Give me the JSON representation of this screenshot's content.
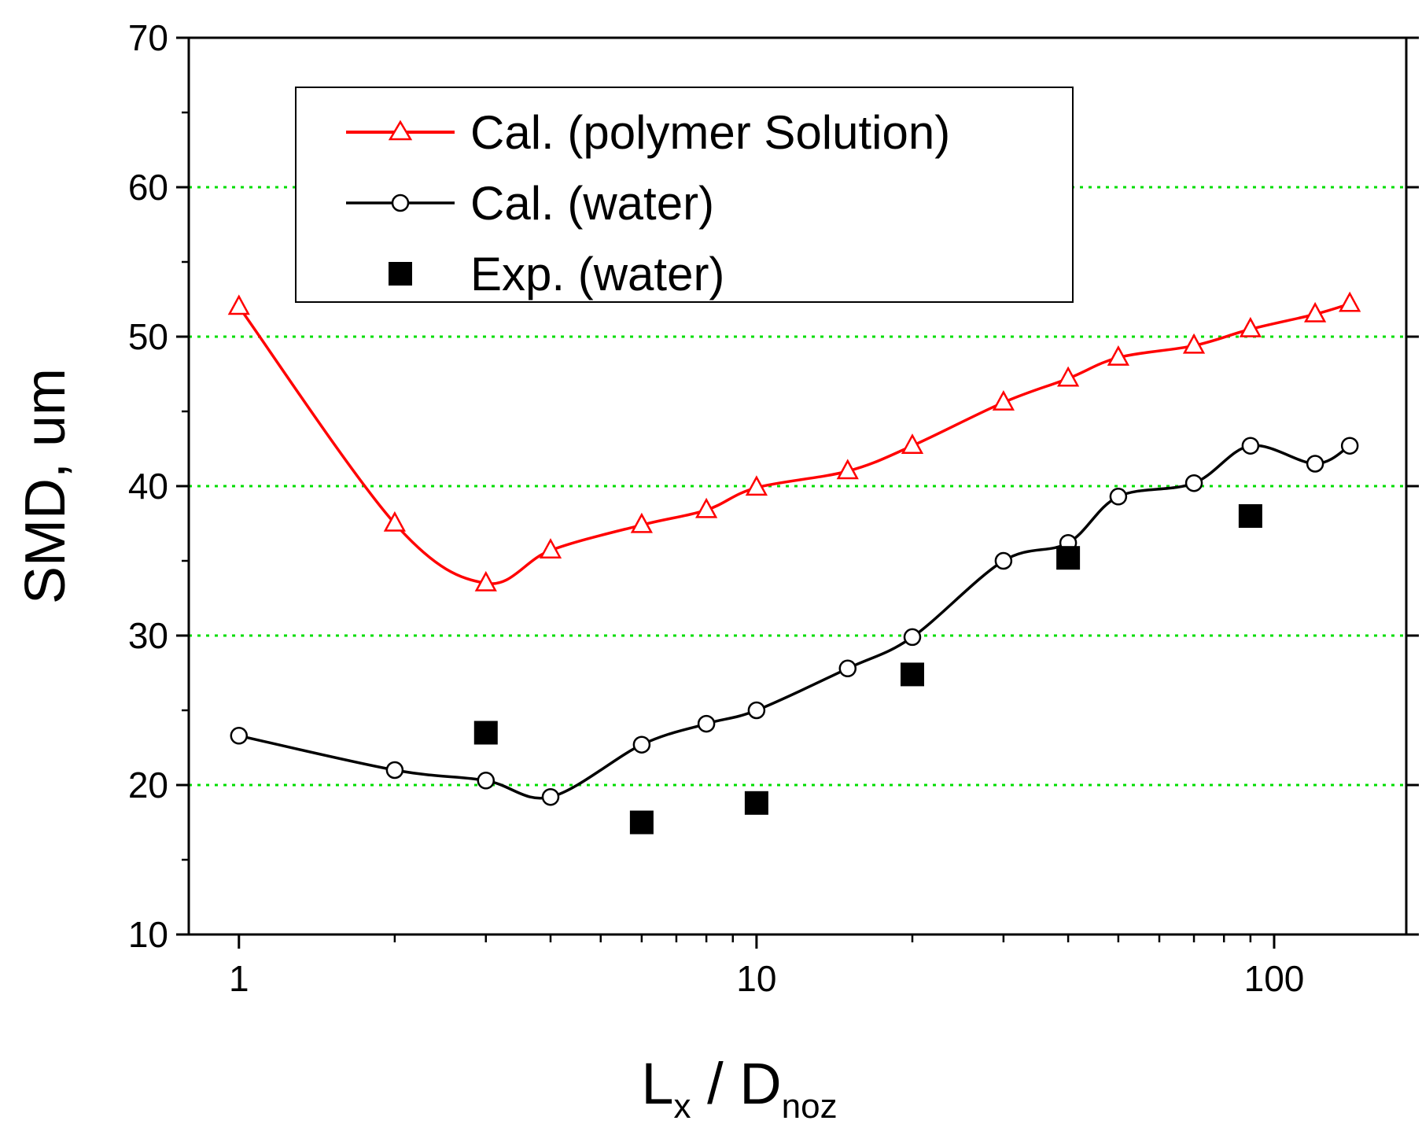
{
  "chart_data": {
    "type": "line",
    "xscale": "log",
    "xlim": [
      0.8,
      180
    ],
    "ylim": [
      10,
      70
    ],
    "xticks_major": [
      1,
      10,
      100
    ],
    "xtick_labels": [
      "1",
      "10",
      "100"
    ],
    "yticks_major": [
      10,
      20,
      30,
      40,
      50,
      60,
      70
    ],
    "ytick_labels": [
      "10",
      "20",
      "30",
      "40",
      "50",
      "60",
      "70"
    ],
    "gridlines_y": [
      20,
      30,
      40,
      50,
      60
    ],
    "grid_color": "#00dd00",
    "ylabel": "SMD, um",
    "xlabel": {
      "L": "L",
      "sub1": "x",
      "sep": " / ",
      "D": "D",
      "sub2": "noz"
    },
    "legend_position": "top-center",
    "series": [
      {
        "name": "Cal. (polymer Solution)",
        "marker": "open-triangle",
        "color": "#ff0000",
        "x": [
          1,
          2,
          3,
          4,
          6,
          8,
          10,
          15,
          20,
          30,
          40,
          50,
          70,
          90,
          120,
          140
        ],
        "y": [
          52.0,
          37.5,
          33.5,
          35.7,
          37.4,
          38.4,
          39.9,
          41.0,
          42.7,
          45.6,
          47.2,
          48.6,
          49.4,
          50.5,
          51.5,
          52.2
        ]
      },
      {
        "name": "Cal. (water)",
        "marker": "open-circle",
        "color": "#000000",
        "x": [
          1,
          2,
          3,
          4,
          6,
          8,
          10,
          15,
          20,
          30,
          40,
          50,
          70,
          90,
          120,
          140
        ],
        "y": [
          23.3,
          21.0,
          20.3,
          19.2,
          22.7,
          24.1,
          25.0,
          27.8,
          29.9,
          35.0,
          36.2,
          39.3,
          40.2,
          42.7,
          41.5,
          42.7
        ]
      },
      {
        "name": "Exp. (water)",
        "marker": "filled-square",
        "color": "#000000",
        "x": [
          3,
          6,
          10,
          20,
          40,
          90
        ],
        "y": [
          23.5,
          17.5,
          18.8,
          27.4,
          35.2,
          38.0
        ]
      }
    ]
  }
}
